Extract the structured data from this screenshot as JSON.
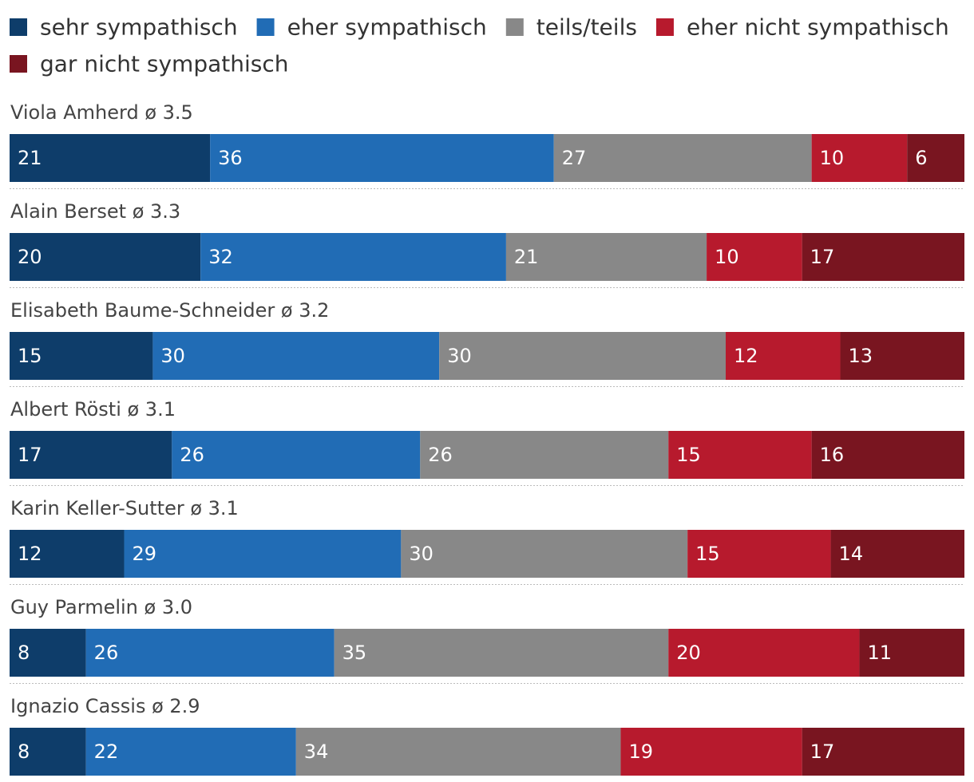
{
  "chart_data": {
    "type": "bar",
    "orientation": "horizontal",
    "stacked": true,
    "legend_position": "top",
    "grid": false,
    "xlim": [
      0,
      100
    ],
    "series": [
      {
        "name": "sehr sympathisch",
        "color": "#0e3d6a"
      },
      {
        "name": "eher sympathisch",
        "color": "#216cb5"
      },
      {
        "name": "teils/teils",
        "color": "#888888"
      },
      {
        "name": "eher nicht sympathisch",
        "color": "#b71a2d"
      },
      {
        "name": "gar nicht sympathisch",
        "color": "#791520"
      }
    ],
    "rows": [
      {
        "label": "Viola Amherd ø 3.5",
        "values": [
          21,
          36,
          27,
          10,
          6
        ]
      },
      {
        "label": "Alain Berset ø 3.3",
        "values": [
          20,
          32,
          21,
          10,
          17
        ]
      },
      {
        "label": "Elisabeth Baume-Schneider ø 3.2",
        "values": [
          15,
          30,
          30,
          12,
          13
        ]
      },
      {
        "label": "Albert Rösti ø 3.1",
        "values": [
          17,
          26,
          26,
          15,
          16
        ]
      },
      {
        "label": "Karin Keller-Sutter ø 3.1",
        "values": [
          12,
          29,
          30,
          15,
          14
        ]
      },
      {
        "label": "Guy Parmelin ø 3.0",
        "values": [
          8,
          26,
          35,
          20,
          11
        ]
      },
      {
        "label": "Ignazio Cassis ø 2.9",
        "values": [
          8,
          22,
          34,
          19,
          17
        ]
      }
    ]
  }
}
